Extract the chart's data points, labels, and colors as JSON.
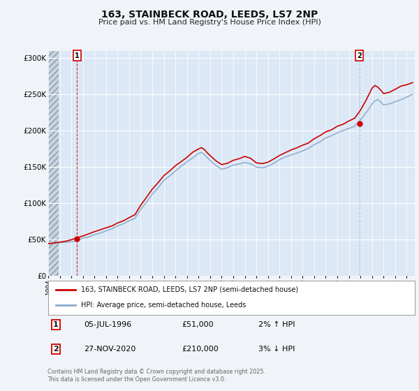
{
  "title": "163, STAINBECK ROAD, LEEDS, LS7 2NP",
  "subtitle": "Price paid vs. HM Land Registry's House Price Index (HPI)",
  "legend_line1": "163, STAINBECK ROAD, LEEDS, LS7 2NP (semi-detached house)",
  "legend_line2": "HPI: Average price, semi-detached house, Leeds",
  "annotation1_label": "1",
  "annotation1_date": "05-JUL-1996",
  "annotation1_price": "£51,000",
  "annotation1_hpi": "2% ↑ HPI",
  "annotation2_label": "2",
  "annotation2_date": "27-NOV-2020",
  "annotation2_price": "£210,000",
  "annotation2_hpi": "3% ↓ HPI",
  "footer": "Contains HM Land Registry data © Crown copyright and database right 2025.\nThis data is licensed under the Open Government Licence v3.0.",
  "background_color": "#f0f4f8",
  "plot_bg_color": "#dce8f5",
  "grid_color": "#ffffff",
  "line_color_red": "#cc0000",
  "line_color_blue": "#88aacc",
  "ylim": [
    0,
    310000
  ],
  "xlim_start": 1994.0,
  "xlim_end": 2025.7,
  "purchase1_year": 1996.5,
  "purchase1_price": 51000,
  "purchase2_year": 2020.9,
  "purchase2_price": 210000,
  "hatch_end": 1994.9
}
